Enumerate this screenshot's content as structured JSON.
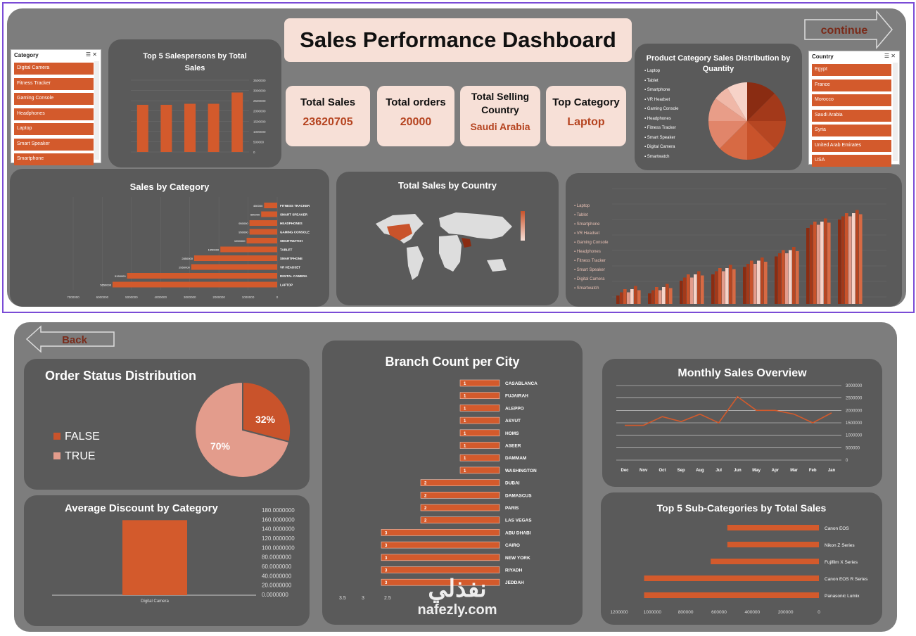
{
  "top": {
    "title": "Sales Performance Dashboard",
    "continue_label": "continue",
    "kpis": [
      {
        "label": "Total Sales",
        "value": "23620705"
      },
      {
        "label": "Total orders",
        "value": "20000"
      },
      {
        "label": "Total Selling Country",
        "value": "Saudi Arabia"
      },
      {
        "label": "Top Category",
        "value": "Laptop"
      }
    ],
    "category_slicer": {
      "header": "Category",
      "items": [
        "Digital Camera",
        "Fitness Tracker",
        "Gaming Console",
        "Headphones",
        "Laptop",
        "Smart Speaker",
        "Smartphone"
      ]
    },
    "country_slicer": {
      "header": "Country",
      "items": [
        "Egypt",
        "France",
        "Morocco",
        "Saudi Arabia",
        "Syria",
        "United Arab Emirates",
        "USA"
      ]
    },
    "top5_title": "Top 5 Salespersons by Total Sales",
    "top5_yticks": [
      "3500000",
      "3000000",
      "2500000",
      "2000000",
      "1500000",
      "1000000",
      "500000",
      "0"
    ],
    "pie_title": "Product Category Sales Distribution by Quantity",
    "pie_legend": [
      "Laptop",
      "Tablet",
      "Smartphone",
      "VR Headset",
      "Gaming Console",
      "Headphones",
      "Fitness Tracker",
      "Smart Speaker",
      "Digital Camera",
      "Smartwatch"
    ],
    "sales_by_cat_title": "Sales by Category",
    "sales_by_cat_xticks": [
      "7000000",
      "6000000",
      "5000000",
      "4000000",
      "3000000",
      "2000000",
      "1000000",
      "0"
    ],
    "country_map_title": "Total Sales by Country",
    "column_legend": [
      "Laptop",
      "Tablet",
      "Smartphone",
      "VR Headset",
      "Gaming Console",
      "Headphones",
      "Fitness Tracker",
      "Smart Speaker",
      "Digital Camera",
      "Smartwatch"
    ]
  },
  "bottom": {
    "back_label": "Back",
    "order_status_title": "Order Status Distribution",
    "order_status_legend": [
      "FALSE",
      "TRUE"
    ],
    "order_status_labels": [
      "32%",
      "70%"
    ],
    "avg_discount_title": "Average Discount by Category",
    "avg_discount_yticks": [
      "180.0000000",
      "160.0000000",
      "140.0000000",
      "120.0000000",
      "100.0000000",
      "80.0000000",
      "60.0000000",
      "40.0000000",
      "20.0000000",
      "0.0000000"
    ],
    "avg_discount_xlabel": "Digital Camera",
    "branch_title": "Branch Count per City",
    "branch_xticks": [
      "3.5",
      "3",
      "2.5"
    ],
    "monthly_title": "Monthly Sales Overview",
    "monthly_yticks": [
      "3000000",
      "2500000",
      "2000000",
      "1500000",
      "1000000",
      "500000",
      "0"
    ],
    "subcat_title": "Top 5 Sub-Categories by Total Sales",
    "subcat_xticks": [
      "1200000",
      "1000000",
      "800000",
      "600000",
      "400000",
      "200000",
      "0"
    ],
    "watermark_ar": "نفذلي",
    "watermark_en": "nafezly.com"
  },
  "colors": {
    "accent": "#d35a2c",
    "panel": "#5a5a5a",
    "bg": "#7d7d7d",
    "kpi": "#f7e0d7",
    "pink": "#e39c8c"
  },
  "chart_data": [
    {
      "type": "bar",
      "title": "Top 5 Salespersons by Total Sales",
      "categories": [
        "",
        "",
        "",
        "",
        ""
      ],
      "values": [
        2300000,
        2300000,
        2350000,
        2350000,
        2900000
      ],
      "ylim": [
        0,
        3500000
      ]
    },
    {
      "type": "bar",
      "title": "Sales by Category",
      "orientation": "horizontal",
      "categories": [
        "FITNESS TRACKER",
        "SMART SPEAKER",
        "HEADPHONES",
        "GAMING CONSOLE",
        "SMARTWATCH",
        "TABLET",
        "SMARTPHONE",
        "VR HEADSET",
        "DIGITAL CAMERA",
        "LAPTOP"
      ],
      "values": [
        450000,
        550000,
        950000,
        950000,
        1050000,
        1950000,
        2850000,
        2950000,
        5150000,
        5650000
      ],
      "xlim": [
        0,
        7000000
      ]
    },
    {
      "type": "pie",
      "title": "Order Status Distribution",
      "categories": [
        "FALSE",
        "TRUE"
      ],
      "values": [
        32,
        70
      ]
    },
    {
      "type": "bar",
      "title": "Average Discount by Category",
      "categories": [
        "Digital Camera"
      ],
      "values": [
        160
      ],
      "ylim": [
        0,
        180
      ]
    },
    {
      "type": "bar",
      "title": "Branch Count per City",
      "orientation": "horizontal",
      "categories": [
        "CASABLANCA",
        "FUJAIRAH",
        "ALEPPO",
        "ASYUT",
        "HOMS",
        "ASEER",
        "DAMMAM",
        "WASHINGTON",
        "DUBAI",
        "DAMASCUS",
        "PARIS",
        "LAS VEGAS",
        "ABU DHABI",
        "CAIRO",
        "NEW YORK",
        "RIYADH",
        "JEDDAH"
      ],
      "values": [
        1,
        1,
        1,
        1,
        1,
        1,
        1,
        1,
        2,
        2,
        2,
        2,
        3,
        3,
        3,
        3,
        3
      ]
    },
    {
      "type": "line",
      "title": "Monthly Sales Overview",
      "categories": [
        "Dec",
        "Nov",
        "Oct",
        "Sep",
        "Aug",
        "Jul",
        "Jun",
        "May",
        "Apr",
        "Mar",
        "Feb",
        "Jan"
      ],
      "values": [
        1400000,
        1400000,
        1750000,
        1550000,
        1850000,
        1500000,
        2550000,
        2000000,
        2000000,
        1850000,
        1500000,
        1900000
      ],
      "ylim": [
        0,
        3000000
      ]
    },
    {
      "type": "bar",
      "title": "Top 5 Sub-Categories by Total Sales",
      "orientation": "horizontal",
      "categories": [
        "Canon EOS",
        "Nikon Z Series",
        "Fujifilm X Series",
        "Canon EOS R Series",
        "Panasonic Lumix"
      ],
      "values": [
        550000,
        550000,
        650000,
        1050000,
        1050000
      ],
      "xlim": [
        0,
        1200000
      ]
    }
  ]
}
